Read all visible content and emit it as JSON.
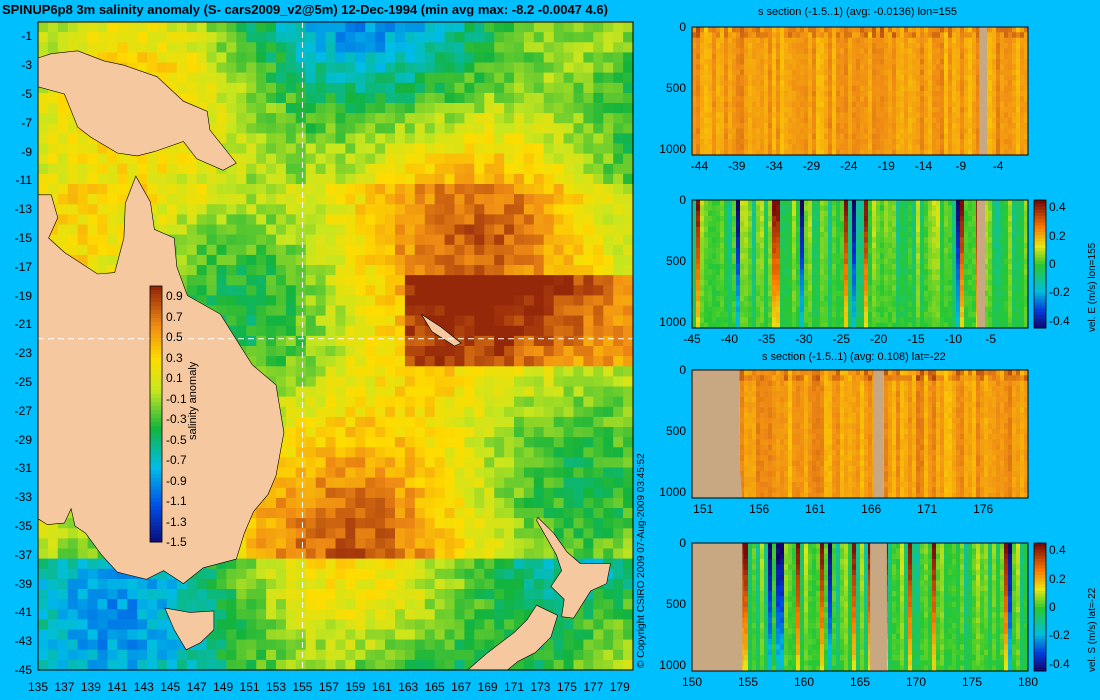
{
  "chart_data": [
    {
      "type": "heatmap",
      "title": "SPINUP6p8 3m salinity anomaly (S- cars2009_v2@5m) 12-Dec-1994 (min avg max: -8.2 -0.0047 4.6)",
      "x_ticks": [
        "135",
        "137",
        "139",
        "141",
        "143",
        "145",
        "147",
        "149",
        "151",
        "153",
        "155",
        "157",
        "159",
        "161",
        "163",
        "165",
        "167",
        "169",
        "171",
        "173",
        "175",
        "177",
        "179"
      ],
      "y_ticks": [
        "-1",
        "-3",
        "-5",
        "-7",
        "-9",
        "-11",
        "-13",
        "-15",
        "-17",
        "-19",
        "-21",
        "-23",
        "-25",
        "-27",
        "-29",
        "-31",
        "-33",
        "-35",
        "-37",
        "-39",
        "-41",
        "-43",
        "-45"
      ],
      "xlim": [
        135,
        180
      ],
      "ylim": [
        -45,
        0
      ],
      "crosshair": {
        "lon": 155,
        "lat": -22
      },
      "colorbar": {
        "label": "salinity anomaly",
        "ticks": [
          "0.9",
          "0.7",
          "0.5",
          "0.3",
          "0.1",
          "-0.1",
          "-0.3",
          "-0.5",
          "-0.7",
          "-0.9",
          "-1.1",
          "-1.3",
          "-1.5"
        ],
        "range": [
          -1.5,
          1.0
        ]
      }
    },
    {
      "type": "heatmap",
      "title": "s section (-1.5..1) (avg: -0.0136) lon=155",
      "x_ticks": [
        "-44",
        "-39",
        "-34",
        "-29",
        "-24",
        "-19",
        "-14",
        "-9",
        "-4"
      ],
      "y_ticks": [
        "0",
        "500",
        "1000"
      ],
      "xlim": [
        -45,
        0
      ],
      "ylim": [
        1050,
        0
      ]
    },
    {
      "type": "heatmap",
      "title": "",
      "x_ticks": [
        "-45",
        "-40",
        "-35",
        "-30",
        "-25",
        "-20",
        "-15",
        "-10",
        "-5"
      ],
      "y_ticks": [
        "0",
        "500",
        "1000"
      ],
      "xlim": [
        -45,
        0
      ],
      "ylim": [
        1050,
        0
      ],
      "colorbar": {
        "label": "vel. E (m/s) lon=155",
        "ticks": [
          "0.4",
          "0.2",
          "0",
          "-0.2",
          "-0.4"
        ],
        "range": [
          -0.45,
          0.45
        ]
      }
    },
    {
      "type": "heatmap",
      "title": "s section (-1.5..1) (avg: 0.108) lat=-22",
      "x_ticks": [
        "151",
        "156",
        "161",
        "166",
        "171",
        "176"
      ],
      "y_ticks": [
        "0",
        "500",
        "1000"
      ],
      "xlim": [
        150,
        180
      ],
      "ylim": [
        1050,
        0
      ]
    },
    {
      "type": "heatmap",
      "title": "",
      "x_ticks": [
        "150",
        "155",
        "160",
        "165",
        "170",
        "175",
        "180"
      ],
      "y_ticks": [
        "0",
        "500",
        "1000"
      ],
      "xlim": [
        150,
        180
      ],
      "ylim": [
        1050,
        0
      ],
      "colorbar": {
        "label": "vel. S (m/s) lat=-22",
        "ticks": [
          "0.4",
          "0.2",
          "0",
          "-0.2",
          "-0.4"
        ],
        "range": [
          -0.45,
          0.45
        ]
      }
    }
  ],
  "copyright": "© Copyright CSIRO 2009   07-Aug-2009 03:45:52",
  "colors": {
    "background": "#00bfff",
    "land": "#f5c8a0",
    "section_land": "#c8a882"
  }
}
